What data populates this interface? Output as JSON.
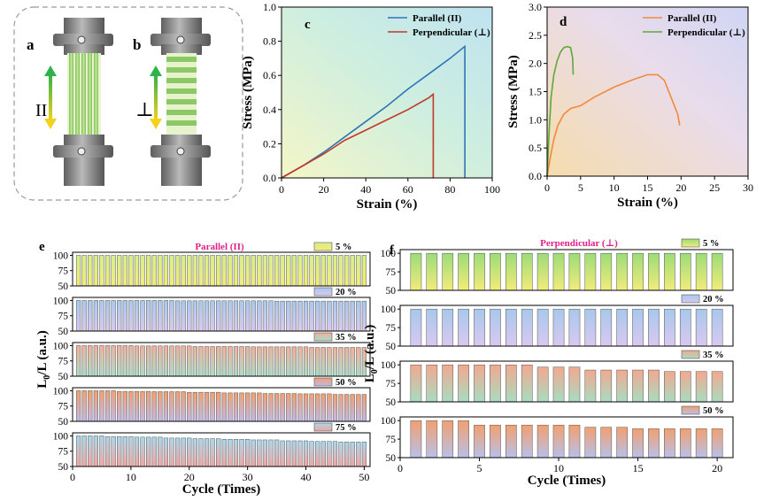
{
  "panel_labels": {
    "a": "a",
    "b": "b",
    "c": "c",
    "d": "d",
    "e": "e",
    "f": "f"
  },
  "schematic": {
    "parallel_symbol": "II",
    "perpendicular_symbol": "⊥"
  },
  "colors": {
    "parallel": "#2e75b6",
    "perpendicular": "#c0392b",
    "parallel_d": "#f08a3c",
    "perpendicular_d": "#5fa83a",
    "title_e_f": "#e0218a"
  },
  "chart_data": [
    {
      "panel": "c",
      "type": "line",
      "xlabel": "Strain (%)",
      "ylabel": "Stress (MPa)",
      "xlim": [
        0,
        100
      ],
      "ylim": [
        0,
        1.0
      ],
      "xticks": [
        0,
        20,
        40,
        60,
        80,
        100
      ],
      "yticks": [
        0.0,
        0.2,
        0.4,
        0.6,
        0.8,
        1.0
      ],
      "legend_position": "top-right",
      "series": [
        {
          "name": "Parallel (II)",
          "color": "#2e75b6",
          "points": [
            [
              0,
              0
            ],
            [
              10,
              0.07
            ],
            [
              20,
              0.15
            ],
            [
              30,
              0.24
            ],
            [
              40,
              0.33
            ],
            [
              50,
              0.42
            ],
            [
              60,
              0.52
            ],
            [
              70,
              0.61
            ],
            [
              80,
              0.7
            ],
            [
              87,
              0.77
            ],
            [
              87,
              0.0
            ]
          ]
        },
        {
          "name": "Perpendicular (⊥)",
          "color": "#c0392b",
          "points": [
            [
              0,
              0
            ],
            [
              10,
              0.07
            ],
            [
              20,
              0.14
            ],
            [
              30,
              0.22
            ],
            [
              40,
              0.28
            ],
            [
              50,
              0.34
            ],
            [
              60,
              0.4
            ],
            [
              70,
              0.47
            ],
            [
              72,
              0.49
            ],
            [
              72,
              0.0
            ]
          ]
        }
      ]
    },
    {
      "panel": "d",
      "type": "line",
      "xlabel": "Strain (%)",
      "ylabel": "Stress (MPa)",
      "xlim": [
        0,
        30
      ],
      "ylim": [
        0,
        3.0
      ],
      "xticks": [
        0,
        5,
        10,
        15,
        20,
        25,
        30
      ],
      "yticks": [
        0.0,
        0.5,
        1.0,
        1.5,
        2.0,
        2.5,
        3.0
      ],
      "legend_position": "top-right",
      "series": [
        {
          "name": "Parallel (II)",
          "color": "#f08a3c",
          "points": [
            [
              0,
              0
            ],
            [
              0.5,
              0.35
            ],
            [
              1.0,
              0.65
            ],
            [
              1.6,
              0.9
            ],
            [
              2.5,
              1.1
            ],
            [
              3.5,
              1.2
            ],
            [
              5,
              1.25
            ],
            [
              7,
              1.4
            ],
            [
              10,
              1.58
            ],
            [
              13,
              1.72
            ],
            [
              15,
              1.8
            ],
            [
              16.5,
              1.8
            ],
            [
              17.5,
              1.7
            ],
            [
              18.5,
              1.4
            ],
            [
              19.5,
              1.1
            ],
            [
              19.8,
              0.9
            ]
          ]
        },
        {
          "name": "Perpendicular (⊥)",
          "color": "#5fa83a",
          "points": [
            [
              0,
              0
            ],
            [
              0.3,
              0.8
            ],
            [
              0.6,
              1.4
            ],
            [
              1.0,
              1.8
            ],
            [
              1.5,
              2.05
            ],
            [
              2.0,
              2.2
            ],
            [
              2.5,
              2.28
            ],
            [
              3.0,
              2.3
            ],
            [
              3.5,
              2.28
            ],
            [
              3.8,
              2.1
            ],
            [
              3.9,
              1.8
            ]
          ]
        }
      ]
    },
    {
      "panel": "e",
      "type": "bar",
      "title": "Parallel (II)",
      "xlabel": "Cycle (Times)",
      "ylabel": "L0/L (a.u.)",
      "cycles": 50,
      "xlim": [
        0,
        51
      ],
      "xticks": [
        0,
        10,
        20,
        30,
        40,
        50
      ],
      "ylim": [
        50,
        105
      ],
      "yticks": [
        50,
        75,
        100
      ],
      "series": [
        {
          "name": "5 %",
          "gradient": [
            "#d6ee8a",
            "#f2ec7a"
          ],
          "start": 100,
          "end": 100,
          "steps": 1
        },
        {
          "name": "20 %",
          "gradient": [
            "#a8c8ec",
            "#d9c8f0"
          ],
          "start": 100,
          "end": 99,
          "steps": 3
        },
        {
          "name": "35 %",
          "gradient": [
            "#f2b09a",
            "#a9dcc8"
          ],
          "start": 100,
          "end": 97,
          "steps": 5
        },
        {
          "name": "50 %",
          "gradient": [
            "#f2a070",
            "#c0b8e8"
          ],
          "start": 100,
          "end": 94,
          "steps": 8
        },
        {
          "name": "75 %",
          "gradient": [
            "#a8d8ee",
            "#f2a5a0"
          ],
          "start": 100,
          "end": 90,
          "steps": 10
        }
      ]
    },
    {
      "panel": "f",
      "type": "bar",
      "title": "Perpendicular (⊥)",
      "xlabel": "Cycle (Times)",
      "ylabel": "L0/L (a.u.)",
      "cycles": 20,
      "xlim": [
        0,
        21
      ],
      "xticks": [
        0,
        5,
        10,
        15,
        20
      ],
      "ylim": [
        50,
        105
      ],
      "yticks": [
        50,
        75,
        100
      ],
      "series": [
        {
          "name": "5 %",
          "gradient": [
            "#9cdc78",
            "#f2ec7a"
          ],
          "values": [
            100,
            100,
            100,
            100,
            100,
            100,
            100,
            100,
            100,
            100,
            100,
            100,
            100,
            100,
            100,
            100,
            100,
            100,
            100,
            100
          ]
        },
        {
          "name": "20 %",
          "gradient": [
            "#a8c8ec",
            "#d9c8f0"
          ],
          "values": [
            100,
            100,
            100,
            100,
            100,
            100,
            100,
            100,
            100,
            100,
            100,
            100,
            100,
            100,
            100,
            100,
            100,
            100,
            100,
            100
          ]
        },
        {
          "name": "35 %",
          "gradient": [
            "#f2a890",
            "#a8dcc0"
          ],
          "values": [
            100,
            100,
            100,
            100,
            100,
            100,
            100,
            100,
            97,
            97,
            97,
            93,
            93,
            93,
            93,
            93,
            91,
            91,
            91,
            91
          ]
        },
        {
          "name": "50 %",
          "gradient": [
            "#f2a070",
            "#b8c0ea"
          ],
          "values": [
            100,
            100,
            100,
            100,
            94,
            94,
            94,
            94,
            94,
            94,
            94,
            91,
            91,
            91,
            89,
            89,
            89,
            89,
            89,
            89
          ]
        }
      ]
    }
  ]
}
